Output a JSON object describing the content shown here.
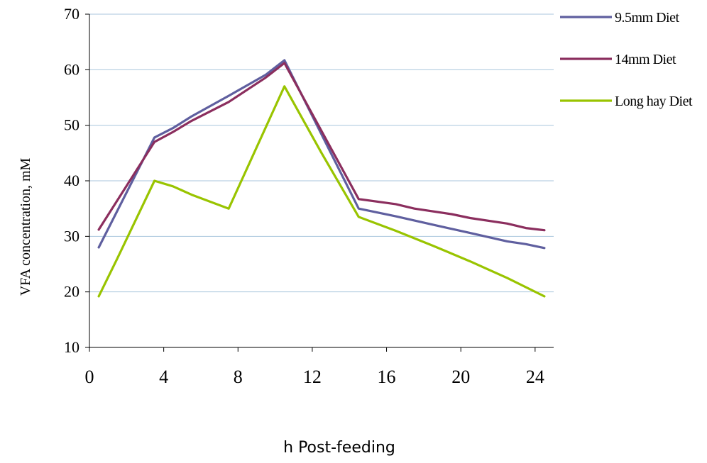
{
  "chart_data": {
    "type": "line",
    "title": "",
    "xlabel": "h  Post-feeding",
    "ylabel": "VFA concentration,  mM",
    "xlim": [
      0,
      25
    ],
    "ylim": [
      10,
      70
    ],
    "x_ticks": [
      0,
      4,
      8,
      12,
      16,
      20,
      24
    ],
    "y_ticks": [
      10,
      20,
      30,
      40,
      50,
      60,
      70
    ],
    "grid": "horizontal",
    "legend_position": "right",
    "series": [
      {
        "name": "9.5mm Diet",
        "color": "#5F5F9F",
        "points": [
          [
            0.5,
            28.0
          ],
          [
            3.5,
            47.8
          ],
          [
            4.5,
            49.5
          ],
          [
            5.5,
            51.6
          ],
          [
            7.5,
            55.3
          ],
          [
            9.5,
            59.1
          ],
          [
            10.5,
            61.7
          ],
          [
            14.5,
            35.0
          ],
          [
            16.5,
            33.6
          ],
          [
            18.5,
            32.1
          ],
          [
            20.5,
            30.6
          ],
          [
            22.5,
            29.1
          ],
          [
            23.5,
            28.6
          ],
          [
            24.5,
            27.9
          ]
        ]
      },
      {
        "name": "14mm Diet",
        "color": "#8B2E5E",
        "points": [
          [
            0.5,
            31.2
          ],
          [
            3.5,
            47.0
          ],
          [
            4.5,
            48.8
          ],
          [
            5.5,
            50.8
          ],
          [
            7.5,
            54.2
          ],
          [
            9.5,
            58.6
          ],
          [
            10.5,
            61.2
          ],
          [
            14.5,
            36.7
          ],
          [
            16.5,
            35.8
          ],
          [
            17.5,
            35.0
          ],
          [
            19.5,
            34.0
          ],
          [
            20.5,
            33.3
          ],
          [
            22.5,
            32.3
          ],
          [
            23.5,
            31.5
          ],
          [
            24.5,
            31.1
          ]
        ]
      },
      {
        "name": "Long hay Diet",
        "color": "#99C400",
        "points": [
          [
            0.5,
            19.2
          ],
          [
            1.5,
            26.0
          ],
          [
            3.5,
            40.0
          ],
          [
            4.5,
            39.0
          ],
          [
            5.5,
            37.5
          ],
          [
            7.5,
            35.0
          ],
          [
            10.5,
            57.0
          ],
          [
            12.5,
            45.0
          ],
          [
            14.5,
            33.5
          ],
          [
            16.5,
            31.0
          ],
          [
            18.5,
            28.3
          ],
          [
            20.5,
            25.5
          ],
          [
            22.5,
            22.5
          ],
          [
            24.5,
            19.2
          ]
        ]
      }
    ]
  }
}
